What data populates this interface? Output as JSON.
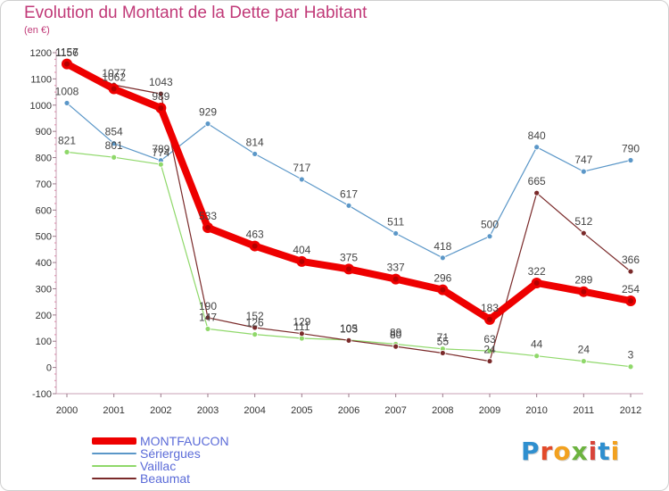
{
  "header": {
    "title": "Evolution du Montant de la Dette par Habitant",
    "unit": "(en €)"
  },
  "logo": {
    "text": "Proxiti"
  },
  "chart_data": {
    "type": "line",
    "title": "Evolution du Montant de la Dette par Habitant",
    "ylabel": "(en €)",
    "xlabel": "",
    "x": [
      "2000",
      "2001",
      "2002",
      "2003",
      "2004",
      "2005",
      "2006",
      "2007",
      "2008",
      "2009",
      "2010",
      "2011",
      "2012"
    ],
    "ylim": [
      -100,
      1200
    ],
    "yticks": [
      -100,
      0,
      100,
      200,
      300,
      400,
      500,
      600,
      700,
      800,
      900,
      1000,
      1100,
      1200
    ],
    "grid": false,
    "legend_position": "bottom-left",
    "series": [
      {
        "name": "MONTFAUCON",
        "color": "#ee0000",
        "values": [
          1157,
          1062,
          989,
          533,
          463,
          404,
          375,
          337,
          296,
          183,
          322,
          289,
          254
        ],
        "labels": [
          "1157",
          "1062",
          "989",
          "533",
          "463",
          "404",
          "375",
          "337",
          "296",
          "183",
          "322",
          "289",
          "254"
        ]
      },
      {
        "name": "Sériergues",
        "color": "#5b97c8",
        "values": [
          1008,
          854,
          789,
          929,
          814,
          717,
          617,
          511,
          418,
          500,
          840,
          747,
          790
        ],
        "labels": [
          "1008",
          "854",
          "789",
          "929",
          "814",
          "717",
          "617",
          "511",
          "418",
          "500",
          "840",
          "747",
          "790"
        ]
      },
      {
        "name": "Vaillac",
        "color": "#8fd86a",
        "values": [
          821,
          801,
          774,
          147,
          126,
          111,
          105,
          89,
          71,
          63,
          44,
          24,
          3
        ],
        "labels": [
          "821",
          "801",
          "774",
          "147",
          "126",
          "111",
          "105",
          "89",
          "71",
          "63",
          "44",
          "24",
          "3"
        ]
      },
      {
        "name": "Beaumat",
        "color": "#7a2a2a",
        "values": [
          1156,
          1077,
          1043,
          190,
          152,
          129,
          103,
          80,
          55,
          24,
          665,
          512,
          366
        ],
        "labels": [
          "1156",
          "1077",
          "1043",
          "190",
          "152",
          "129",
          "103",
          "80",
          "55",
          "24",
          "665",
          "512",
          "366"
        ]
      }
    ]
  }
}
